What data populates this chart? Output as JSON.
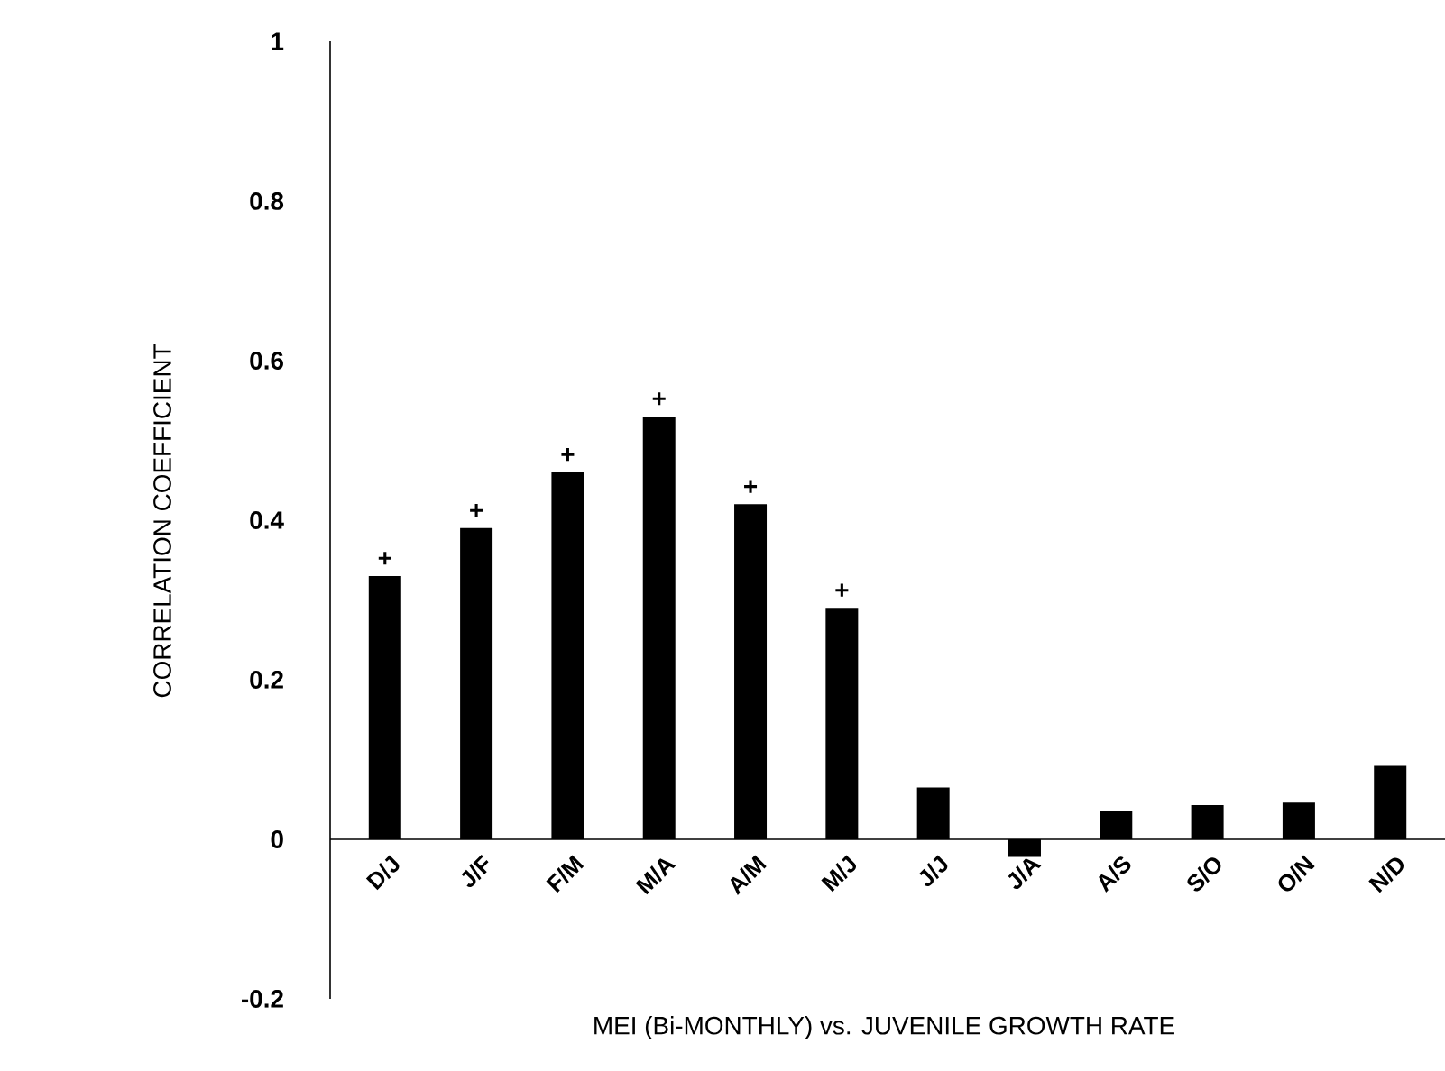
{
  "chart_data": {
    "type": "bar",
    "xlabel": "MEI (Bi-MONTHLY) vs. JUVENILE GROWTH RATE",
    "ylabel": "CORRELATION COEFFICIENT",
    "categories": [
      "D/J",
      "J/F",
      "F/M",
      "M/A",
      "A/M",
      "M/J",
      "J/J",
      "J/A",
      "A/S",
      "S/O",
      "O/N",
      "N/D"
    ],
    "values": [
      0.33,
      0.39,
      0.46,
      0.53,
      0.42,
      0.29,
      0.065,
      -0.022,
      0.035,
      0.043,
      0.046,
      0.092
    ],
    "color": "#000000",
    "ylim": [
      -0.2,
      1
    ],
    "yticks": [
      -0.2,
      0,
      0.2,
      0.4,
      0.6,
      0.8,
      1
    ],
    "annotations": [
      {
        "text": "+",
        "x": "D/J",
        "y": 0.33
      },
      {
        "text": "+",
        "x": "J/F",
        "y": 0.39
      },
      {
        "text": "+",
        "x": "F/M",
        "y": 0.46
      },
      {
        "text": "+",
        "x": "M/A",
        "y": 0.53
      },
      {
        "text": "+",
        "x": "A/M",
        "y": 0.42
      },
      {
        "text": "+",
        "x": "M/J",
        "y": 0.29
      }
    ]
  }
}
